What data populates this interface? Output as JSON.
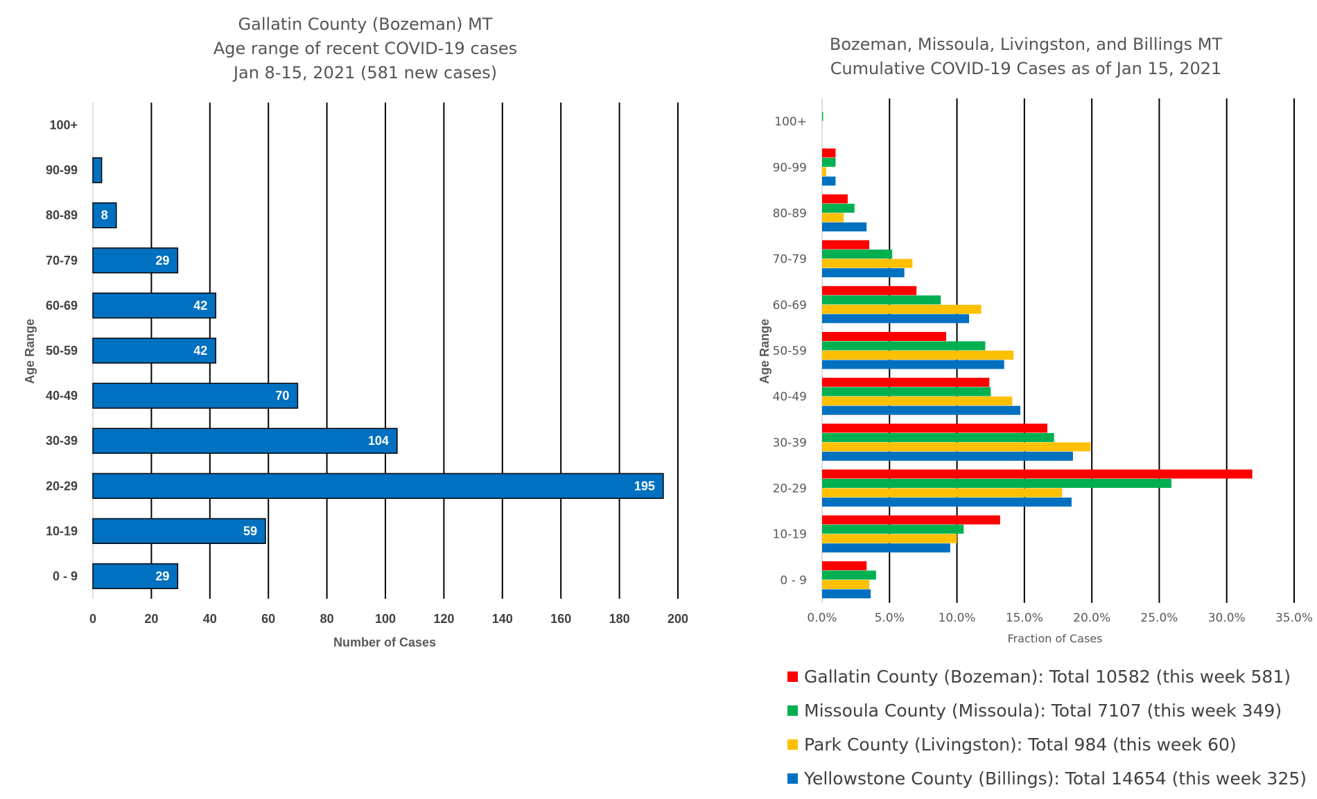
{
  "chart_data": [
    {
      "type": "bar",
      "orientation": "horizontal",
      "title_lines": [
        "Gallatin County (Bozeman) MT",
        "Age range of recent COVID-19 cases",
        "Jan 8-15, 2021 (581 new cases)"
      ],
      "xlabel": "Number of Cases",
      "ylabel": "Age Range",
      "categories": [
        "0 - 9",
        "10-19",
        "20-29",
        "30-39",
        "40-49",
        "50-59",
        "60-69",
        "70-79",
        "80-89",
        "90-99",
        "100+"
      ],
      "values": [
        29,
        59,
        195,
        104,
        70,
        42,
        42,
        29,
        8,
        3,
        0
      ],
      "data_labels": [
        "29",
        "59",
        "195",
        "104",
        "70",
        "42",
        "42",
        "29",
        "8",
        "",
        ""
      ],
      "xlim": [
        0,
        200
      ],
      "xticks": [
        "0",
        "20",
        "40",
        "60",
        "80",
        "100",
        "120",
        "140",
        "160",
        "180",
        "200"
      ],
      "grid": "vertical",
      "color": "#0070C0"
    },
    {
      "type": "bar",
      "orientation": "horizontal",
      "title_lines": [
        "Bozeman, Missoula, Livingston, and Billings MT",
        "Cumulative COVID-19 Cases as of Jan 15, 2021"
      ],
      "xlabel": "Fraction of Cases",
      "ylabel": "Age Range",
      "categories": [
        "0 - 9",
        "10-19",
        "20-29",
        "30-39",
        "40-49",
        "50-59",
        "60-69",
        "70-79",
        "80-89",
        "90-99",
        "100+"
      ],
      "xlim": [
        0,
        35
      ],
      "xticks": [
        "0.0%",
        "5.0%",
        "10.0%",
        "15.0%",
        "20.0%",
        "25.0%",
        "30.0%",
        "35.0%"
      ],
      "grid": "vertical",
      "legend_position": "bottom",
      "series": [
        {
          "name": "Gallatin County (Bozeman): Total 10582 (this week 581)",
          "color": "#FF0000",
          "values": [
            3.3,
            13.2,
            31.9,
            16.7,
            12.4,
            9.2,
            7.0,
            3.5,
            1.9,
            1.0,
            0.0
          ]
        },
        {
          "name": "Missoula County (Missoula): Total 7107 (this week 349)",
          "color": "#00B050",
          "values": [
            4.0,
            10.5,
            25.9,
            17.2,
            12.5,
            12.1,
            8.8,
            5.2,
            2.4,
            1.0,
            0.05
          ]
        },
        {
          "name": "Park County (Livingston): Total 984 (this week 60)",
          "color": "#FFC000",
          "values": [
            3.5,
            10.0,
            17.8,
            19.9,
            14.1,
            14.2,
            11.8,
            6.7,
            1.6,
            0.3,
            0.0
          ]
        },
        {
          "name": "Yellowstone County (Billings): Total 14654 (this week 325)",
          "color": "#0070C0",
          "values": [
            3.6,
            9.5,
            18.5,
            18.6,
            14.7,
            13.5,
            10.9,
            6.1,
            3.3,
            1.0,
            0.0
          ]
        }
      ]
    }
  ]
}
